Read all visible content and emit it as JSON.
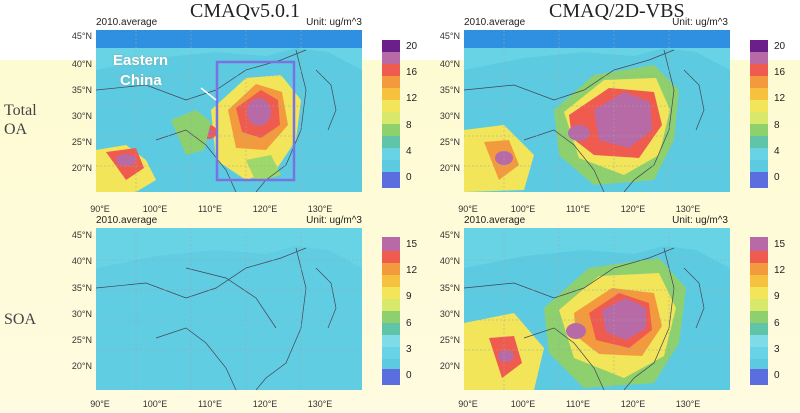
{
  "columns": {
    "left": "CMAQv5.0.1",
    "right": "CMAQ/2D-VBS"
  },
  "rows": {
    "top": [
      "Total",
      "OA"
    ],
    "bottom": "SOA"
  },
  "panels": {
    "p1": {
      "title": "2010.average",
      "unit": "Unit: ug/m^3"
    },
    "p2": {
      "title": "2010.average",
      "unit": "Unit: ug/m^3"
    },
    "p3": {
      "title": "2010.average",
      "unit": "Unit: ug/m^3"
    },
    "p4": {
      "title": "2010.average",
      "unit": "Unit: ug/m^3"
    }
  },
  "lat_labels_top": [
    "45°N",
    "40°N",
    "35°N",
    "30°N",
    "25°N",
    "20°N"
  ],
  "lat_labels_bottom": [
    "45°N",
    "40°N",
    "35°N",
    "30°N",
    "25°N",
    "20°N"
  ],
  "lon_labels": [
    "90°E",
    "100°E",
    "110°E",
    "120°E",
    "130°E"
  ],
  "colorbar_oa": [
    "20",
    "16",
    "12",
    "8",
    "4",
    "0"
  ],
  "colorbar_soa": [
    "15",
    "12",
    "9",
    "6",
    "3",
    "0"
  ],
  "annotation": {
    "line1": "Eastern",
    "line2": "China"
  },
  "colors": {
    "box": "#7a72e0",
    "annotation": "#ffffff",
    "ocean": "#69d3e6",
    "land": "#55c6de"
  }
}
